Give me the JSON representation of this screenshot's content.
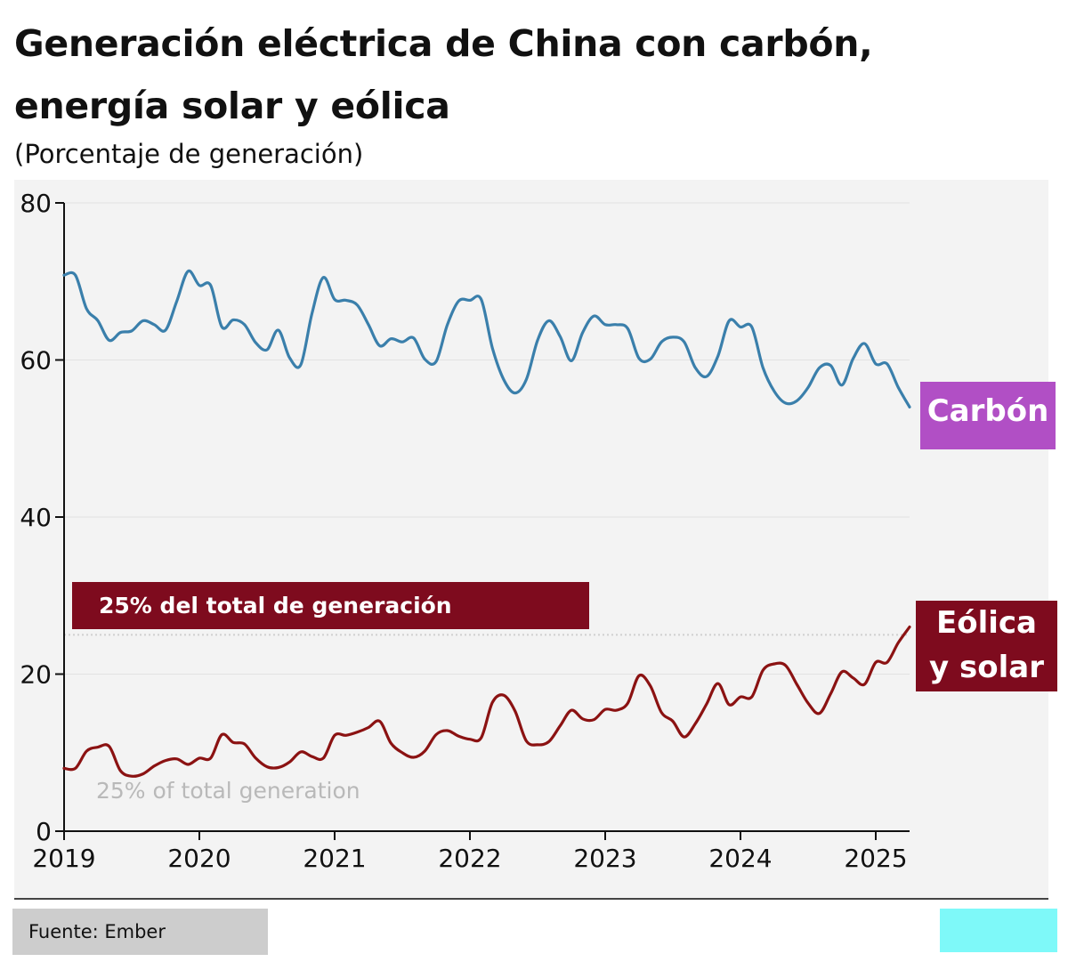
{
  "chart_data": {
    "type": "line",
    "title": "Generación eléctrica de China con carbón, energía solar y eólica",
    "subtitle": "(Porcentaje de generación)",
    "xlabel": "",
    "ylabel": "",
    "x_start": 2019.0,
    "x_step_months": 1,
    "xlim": [
      2019.0,
      2025.25
    ],
    "ylim": [
      0,
      80
    ],
    "yticks": [
      0,
      20,
      40,
      60,
      80
    ],
    "xticks": [
      2019,
      2020,
      2021,
      2022,
      2023,
      2024,
      2025
    ],
    "reference_line": {
      "value": 25,
      "label": "25% del total de generación",
      "ghost_text": "25% of total generation"
    },
    "series": [
      {
        "name": "Carbón",
        "color": "#3a7fab",
        "values": [
          70.8,
          70.8,
          66.5,
          65,
          62.5,
          63.5,
          63.7,
          65,
          64.5,
          63.8,
          67.5,
          71.3,
          69.5,
          69.5,
          64.2,
          65.1,
          64.5,
          62.2,
          61.3,
          63.8,
          60.3,
          59.4,
          66,
          70.5,
          67.7,
          67.6,
          67,
          64.5,
          61.8,
          62.7,
          62.3,
          62.8,
          60.1,
          59.8,
          64.5,
          67.5,
          67.6,
          67.7,
          61.5,
          57.5,
          55.8,
          57.5,
          62.5,
          65,
          63,
          59.9,
          63.5,
          65.6,
          64.5,
          64.5,
          64,
          60.2,
          60.1,
          62.3,
          62.9,
          62.3,
          59,
          57.9,
          60.5,
          65,
          64.2,
          64.2,
          59,
          56,
          54.5,
          54.8,
          56.5,
          59,
          59.3,
          56.8,
          60.2,
          62.1,
          59.5,
          59.5,
          56.5,
          54
        ]
      },
      {
        "name": "Eólica y solar",
        "color": "#8b1212",
        "values": [
          8,
          8,
          10.2,
          10.7,
          10.8,
          7.7,
          7,
          7.3,
          8.3,
          9,
          9.2,
          8.5,
          9.3,
          9.3,
          12.3,
          11.3,
          11.1,
          9.3,
          8.2,
          8.1,
          8.8,
          10.1,
          9.5,
          9.3,
          12.2,
          12.2,
          12.6,
          13.2,
          14,
          11.2,
          10,
          9.4,
          10.2,
          12.3,
          12.8,
          12.1,
          11.7,
          11.9,
          16.4,
          17.3,
          15.3,
          11.5,
          11,
          11.4,
          13.4,
          15.4,
          14.3,
          14.2,
          15.5,
          15.4,
          16.3,
          19.8,
          18.5,
          15.1,
          14,
          12,
          13.7,
          16.2,
          18.8,
          16.1,
          17.1,
          17.1,
          20.5,
          21.3,
          21.1,
          18.7,
          16.3,
          15,
          17.5,
          20.3,
          19.5,
          18.7,
          21.5,
          21.5,
          24,
          26
        ]
      }
    ],
    "series_labels": {
      "carbon": "Carbón",
      "wind_solar_line1": "Eólica",
      "wind_solar_line2": "y solar"
    },
    "source": "Fuente: Ember"
  }
}
